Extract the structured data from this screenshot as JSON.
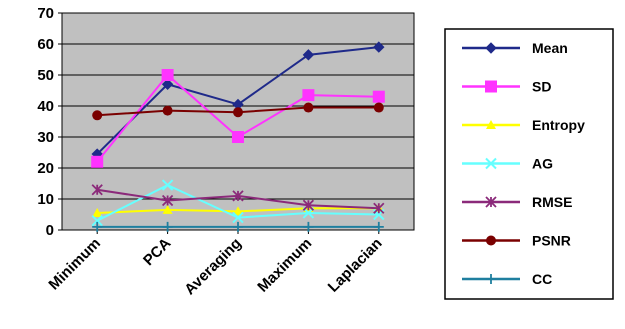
{
  "chart_data": {
    "type": "line",
    "title": "",
    "xlabel": "",
    "ylabel": "",
    "categories": [
      "Minimum",
      "PCA",
      "Averaging",
      "Maximum",
      "Laplacian"
    ],
    "ylim": [
      0,
      70
    ],
    "yticks": [
      0,
      10,
      20,
      30,
      40,
      50,
      60,
      70
    ],
    "grid": true,
    "legend_position": "right",
    "series": [
      {
        "name": "Mean",
        "color": "#1f2a8a",
        "marker": "diamond",
        "values": [
          24.5,
          47,
          40.5,
          56.5,
          59
        ]
      },
      {
        "name": "SD",
        "color": "#ff33ff",
        "marker": "square",
        "values": [
          22,
          50,
          30,
          43.5,
          43
        ]
      },
      {
        "name": "Entropy",
        "color": "#ffff00",
        "marker": "triangle",
        "values": [
          5.5,
          6.5,
          6,
          7,
          7
        ]
      },
      {
        "name": "AG",
        "color": "#66ffff",
        "marker": "x",
        "values": [
          3,
          14.5,
          4,
          5.5,
          5
        ]
      },
      {
        "name": "RMSE",
        "color": "#8b2a7a",
        "marker": "star",
        "values": [
          13,
          9.5,
          11,
          8,
          7
        ]
      },
      {
        "name": "PSNR",
        "color": "#7a0000",
        "marker": "circle",
        "values": [
          37,
          38.5,
          38,
          39.5,
          39.5
        ]
      },
      {
        "name": "CC",
        "color": "#1f7f9f",
        "marker": "plus",
        "values": [
          1,
          1,
          1,
          1,
          1
        ]
      }
    ]
  }
}
